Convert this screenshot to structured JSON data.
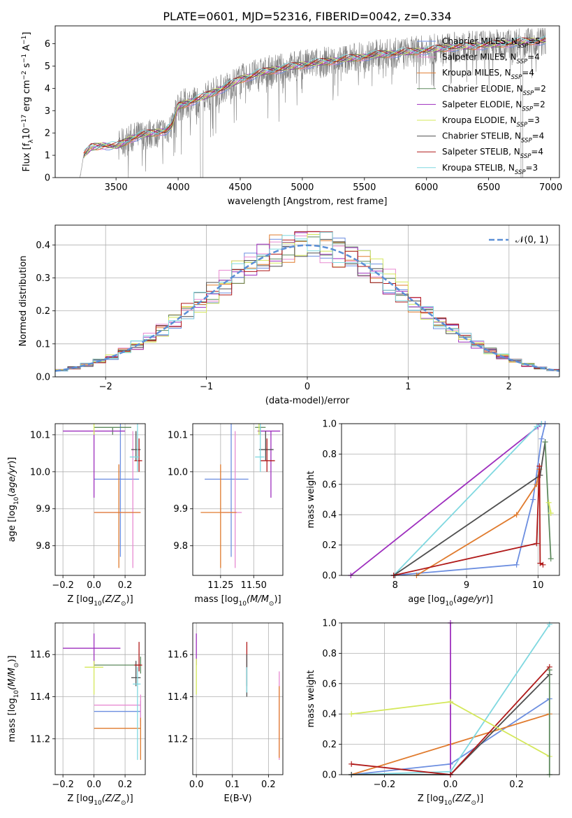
{
  "figure": {
    "title": "PLATE=0601, MJD=52316, FIBERID=0042, z=0.334"
  },
  "colors": {
    "axis": "#000000",
    "grid": "#b0b0b0",
    "spectrum": "#808080"
  },
  "chart_data": [
    {
      "id": "spectrum",
      "type": "line",
      "xlabel": "wavelength [Angstrom, rest frame]",
      "ylabel": "Flux [f",
      "xlim": [
        3010,
        7070
      ],
      "ylim": [
        0,
        6.8
      ],
      "xticks": [
        "3500",
        "4000",
        "4500",
        "5000",
        "5500",
        "6000",
        "6500",
        "7000"
      ],
      "yticks": [
        "0",
        "1",
        "2",
        "3",
        "4",
        "5",
        "6"
      ],
      "grid": false,
      "legend_position": "top-right",
      "data_start": 3210,
      "data_end": 6960,
      "observed_series": {
        "color": "#808080"
      },
      "series": [
        {
          "name": "Chabrier MILES, N",
          "sub": "SSP",
          "n": "=5",
          "color": "#6c8ee0"
        },
        {
          "name": "Salpeter MILES, N",
          "sub": "SSP",
          "n": "=4",
          "color": "#e88ad2"
        },
        {
          "name": "Kroupa MILES, N",
          "sub": "SSP",
          "n": "=4",
          "color": "#e07b2e"
        },
        {
          "name": "Chabrier ELODIE, N",
          "sub": "SSP",
          "n": "=2",
          "color": "#5e8a5e"
        },
        {
          "name": "Salpeter ELODIE, N",
          "sub": "SSP",
          "n": "=2",
          "color": "#9e2fbe"
        },
        {
          "name": "Kroupa ELODIE, N",
          "sub": "SSP",
          "n": "=3",
          "color": "#d4e85a"
        },
        {
          "name": "Chabrier STELIB, N",
          "sub": "SSP",
          "n": "=4",
          "color": "#4f4f4f"
        },
        {
          "name": "Salpeter STELIB, N",
          "sub": "SSP",
          "n": "=4",
          "color": "#b01a1a"
        },
        {
          "name": "Kroupa STELIB, N",
          "sub": "SSP",
          "n": "=3",
          "color": "#7fd8e0"
        }
      ],
      "continuum": {
        "x": [
          3210,
          3240,
          3300,
          3400,
          3500,
          3560,
          3620,
          3700,
          3800,
          3900,
          3950,
          4000,
          4100,
          4200,
          4300,
          4400,
          4500,
          4700,
          4900,
          5000,
          5200,
          5400,
          5600,
          5800,
          6000,
          6200,
          6400,
          6600,
          6800,
          6960
        ],
        "y": [
          0.0,
          1.0,
          1.35,
          1.45,
          1.4,
          1.55,
          1.75,
          1.9,
          2.0,
          2.1,
          2.3,
          3.2,
          3.4,
          3.6,
          3.85,
          4.1,
          4.4,
          4.75,
          4.95,
          5.05,
          5.2,
          5.35,
          5.5,
          5.6,
          5.7,
          5.85,
          5.9,
          6.0,
          6.1,
          6.15
        ]
      }
    },
    {
      "id": "residuals",
      "type": "histogram",
      "xlabel": "(data-model)/error",
      "ylabel": "Normed distribution",
      "xlim": [
        -2.5,
        2.5
      ],
      "ylim": [
        0,
        0.46
      ],
      "xticks": [
        "−2",
        "−1",
        "0",
        "1",
        "2"
      ],
      "yticks": [
        "0.0",
        "0.1",
        "0.2",
        "0.3",
        "0.4"
      ],
      "grid": true,
      "bins": 40,
      "legend_position": "top-right",
      "gaussian": {
        "label": "𝒩(0, 1)",
        "color": "#5b8fd6"
      }
    },
    {
      "id": "age-vs-Z",
      "type": "errorbar",
      "xlabel": "Z [log",
      "ylabel": "age  [log",
      "xlim": [
        -0.25,
        0.33
      ],
      "ylim": [
        9.72,
        10.13
      ],
      "xticks": [
        "−0.2",
        "0.0",
        "0.2"
      ],
      "yticks": [
        "9.8",
        "9.9",
        "10.0",
        "10.1"
      ],
      "grid": true,
      "points": [
        {
          "x": 0.17,
          "y": 9.98,
          "xerr": [
            0.17,
            0.12
          ],
          "yerr": [
            0.21,
            0.17
          ],
          "color": "#6c8ee0"
        },
        {
          "x": 0.25,
          "y": 9.89,
          "xerr": [
            0.25,
            0.05
          ],
          "yerr": [
            0.15,
            0.22
          ],
          "color": "#e88ad2"
        },
        {
          "x": 0.16,
          "y": 9.89,
          "xerr": [
            0.16,
            0.14
          ],
          "yerr": [
            0.15,
            0.13
          ],
          "color": "#e07b2e"
        },
        {
          "x": 0.12,
          "y": 10.12,
          "xerr": [
            0.12,
            0.12
          ],
          "yerr": [
            0.02,
            0.0
          ],
          "color": "#5e8a5e"
        },
        {
          "x": 0.0,
          "y": 10.11,
          "xerr": [
            0.2,
            0.2
          ],
          "yerr": [
            0.18,
            0.0
          ],
          "color": "#9e2fbe"
        },
        {
          "x": 0.0,
          "y": 10.15,
          "xerr": [
            0.06,
            0.12
          ],
          "yerr": [
            0.05,
            0.03
          ],
          "color": "#d4e85a"
        },
        {
          "x": 0.27,
          "y": 10.06,
          "xerr": [
            0.03,
            0.03
          ],
          "yerr": [
            0.03,
            0.05
          ],
          "color": "#4f4f4f"
        },
        {
          "x": 0.29,
          "y": 10.03,
          "xerr": [
            0.03,
            0.02
          ],
          "yerr": [
            0.03,
            0.06
          ],
          "color": "#b01a1a"
        },
        {
          "x": 0.28,
          "y": 10.04,
          "xerr": [
            0.05,
            0.01
          ],
          "yerr": [
            0.04,
            0.1
          ],
          "color": "#7fd8e0"
        }
      ]
    },
    {
      "id": "age-vs-mass",
      "type": "errorbar",
      "xlabel": "mass [log",
      "ylabel": "",
      "xlim": [
        11.04,
        11.72
      ],
      "ylim": [
        9.72,
        10.13
      ],
      "xticks": [
        "11.25",
        "11.50"
      ],
      "yticks": [
        "9.8",
        "9.9",
        "10.0",
        "10.1"
      ],
      "grid": true,
      "points": [
        {
          "x": 11.33,
          "y": 9.98,
          "xerr": [
            0.2,
            0.13
          ],
          "yerr": [
            0.21,
            0.17
          ],
          "color": "#6c8ee0"
        },
        {
          "x": 11.36,
          "y": 9.89,
          "xerr": [
            0.1,
            0.05
          ],
          "yerr": [
            0.15,
            0.22
          ],
          "color": "#e88ad2"
        },
        {
          "x": 11.25,
          "y": 9.89,
          "xerr": [
            0.15,
            0.12
          ],
          "yerr": [
            0.15,
            0.13
          ],
          "color": "#e07b2e"
        },
        {
          "x": 11.55,
          "y": 10.12,
          "xerr": [
            0.04,
            0.04
          ],
          "yerr": [
            0.02,
            0.0
          ],
          "color": "#5e8a5e"
        },
        {
          "x": 11.63,
          "y": 10.11,
          "xerr": [
            0.1,
            0.07
          ],
          "yerr": [
            0.18,
            0.0
          ],
          "color": "#9e2fbe"
        },
        {
          "x": 11.54,
          "y": 10.15,
          "xerr": [
            0.04,
            0.05
          ],
          "yerr": [
            0.05,
            0.03
          ],
          "color": "#d4e85a"
        },
        {
          "x": 11.59,
          "y": 10.06,
          "xerr": [
            0.05,
            0.06
          ],
          "yerr": [
            0.03,
            0.05
          ],
          "color": "#4f4f4f"
        },
        {
          "x": 11.6,
          "y": 10.03,
          "xerr": [
            0.05,
            0.06
          ],
          "yerr": [
            0.03,
            0.06
          ],
          "color": "#b01a1a"
        },
        {
          "x": 11.55,
          "y": 10.04,
          "xerr": [
            0.04,
            0.03
          ],
          "yerr": [
            0.04,
            0.1
          ],
          "color": "#7fd8e0"
        }
      ]
    },
    {
      "id": "sfh-age",
      "type": "line",
      "xlabel": "age  [log",
      "ylabel": "mass weight",
      "xlim": [
        7.25,
        10.3
      ],
      "ylim": [
        0,
        1
      ],
      "xticks": [
        "8",
        "9",
        "10"
      ],
      "yticks": [
        "0.0",
        "0.2",
        "0.4",
        "0.6",
        "0.8",
        "1.0"
      ],
      "grid": true,
      "series": [
        {
          "color": "#6c8ee0",
          "x": [
            7.98,
            9.7,
            9.93,
            10.05,
            10.1
          ],
          "y": [
            0.0,
            0.07,
            0.5,
            0.9,
            1.0
          ]
        },
        {
          "color": "#e07b2e",
          "x": [
            8.3,
            9.7,
            9.98,
            10.02
          ],
          "y": [
            0.0,
            0.4,
            0.6,
            0.7
          ]
        },
        {
          "color": "#9e2fbe",
          "x": [
            7.38,
            10.0,
            10.05
          ],
          "y": [
            0.0,
            0.98,
            1.0
          ]
        },
        {
          "color": "#7fd8e0",
          "x": [
            7.98,
            9.98,
            10.05
          ],
          "y": [
            0.0,
            0.98,
            1.0
          ]
        },
        {
          "color": "#4f4f4f",
          "x": [
            7.98,
            10.03,
            10.1
          ],
          "y": [
            0.0,
            0.66,
            0.88
          ]
        },
        {
          "color": "#5e8a5e",
          "x": [
            10.1,
            10.18
          ],
          "y": [
            0.88,
            0.11
          ]
        },
        {
          "color": "#d4e85a",
          "x": [
            10.15,
            10.18
          ],
          "y": [
            0.48,
            0.41
          ]
        },
        {
          "color": "#b01a1a",
          "x": [
            7.98,
            9.98,
            10.02,
            10.03,
            10.07
          ],
          "y": [
            0.0,
            0.21,
            0.72,
            0.08,
            0.07
          ]
        }
      ]
    },
    {
      "id": "mass-vs-Z",
      "type": "errorbar",
      "xlabel": "Z [log",
      "ylabel": "mass [log",
      "xlim": [
        -0.25,
        0.33
      ],
      "ylim": [
        11.03,
        11.75
      ],
      "xticks": [
        "−0.2",
        "0.0",
        "0.2"
      ],
      "yticks": [
        "11.2",
        "11.4",
        "11.6"
      ],
      "grid": true,
      "points": [
        {
          "x": 0.3,
          "y": 11.33,
          "xerr": [
            0.3,
            0.0
          ],
          "yerr": [
            0.05,
            0.05
          ],
          "color": "#6c8ee0"
        },
        {
          "x": 0.3,
          "y": 11.36,
          "xerr": [
            0.3,
            0.0
          ],
          "yerr": [
            0.1,
            0.05
          ],
          "color": "#e88ad2"
        },
        {
          "x": 0.3,
          "y": 11.25,
          "xerr": [
            0.3,
            0.0
          ],
          "yerr": [
            0.15,
            0.05
          ],
          "color": "#e07b2e"
        },
        {
          "x": 0.3,
          "y": 11.55,
          "xerr": [
            0.3,
            0.0
          ],
          "yerr": [
            0.04,
            0.04
          ],
          "color": "#5e8a5e"
        },
        {
          "x": 0.0,
          "y": 11.63,
          "xerr": [
            0.2,
            0.17
          ],
          "yerr": [
            0.09,
            0.07
          ],
          "color": "#9e2fbe"
        },
        {
          "x": 0.0,
          "y": 11.54,
          "xerr": [
            0.06,
            0.06
          ],
          "yerr": [
            0.13,
            0.03
          ],
          "color": "#d4e85a"
        },
        {
          "x": 0.27,
          "y": 11.49,
          "xerr": [
            0.03,
            0.03
          ],
          "yerr": [
            0.04,
            0.08
          ],
          "color": "#4f4f4f"
        },
        {
          "x": 0.29,
          "y": 11.55,
          "xerr": [
            0.03,
            0.02
          ],
          "yerr": [
            0.03,
            0.11
          ],
          "color": "#b01a1a"
        },
        {
          "x": 0.28,
          "y": 11.46,
          "xerr": [
            0.03,
            0.02
          ],
          "yerr": [
            0.36,
            0.08
          ],
          "color": "#7fd8e0"
        }
      ]
    },
    {
      "id": "mass-vs-EBV",
      "type": "errorbar",
      "xlabel": "E(B-V)",
      "ylabel": "",
      "xlim": [
        -0.01,
        0.24
      ],
      "ylim": [
        11.03,
        11.75
      ],
      "xticks": [
        "0.0",
        "0.1",
        "0.2"
      ],
      "yticks": [
        "11.2",
        "11.4",
        "11.6"
      ],
      "grid": true,
      "points": [
        {
          "x": 0.0,
          "y": 11.63,
          "xerr": [
            0,
            0
          ],
          "yerr": [
            0.08,
            0.07
          ],
          "color": "#9e2fbe"
        },
        {
          "x": 0.0,
          "y": 11.54,
          "xerr": [
            0,
            0
          ],
          "yerr": [
            0.13,
            0.04
          ],
          "color": "#d4e85a"
        },
        {
          "x": 0.14,
          "y": 11.55,
          "xerr": [
            0,
            0
          ],
          "yerr": [
            0.1,
            0.11
          ],
          "color": "#b01a1a"
        },
        {
          "x": 0.14,
          "y": 11.5,
          "xerr": [
            0,
            0
          ],
          "yerr": [
            0.1,
            0.1
          ],
          "color": "#4f4f4f"
        },
        {
          "x": 0.14,
          "y": 11.46,
          "xerr": [
            0,
            0
          ],
          "yerr": [
            0.04,
            0.08
          ],
          "color": "#7fd8e0"
        },
        {
          "x": 0.23,
          "y": 11.36,
          "xerr": [
            0,
            0
          ],
          "yerr": [
            0.26,
            0.16
          ],
          "color": "#e88ad2"
        },
        {
          "x": 0.23,
          "y": 11.25,
          "xerr": [
            0,
            0
          ],
          "yerr": [
            0.14,
            0.2
          ],
          "color": "#e07b2e"
        }
      ]
    },
    {
      "id": "sfh-Z",
      "type": "line",
      "xlabel": "Z [log",
      "ylabel": "mass weight",
      "xlim": [
        -0.33,
        0.33
      ],
      "ylim": [
        0,
        1
      ],
      "xticks": [
        "−0.2",
        "0.0",
        "0.2"
      ],
      "yticks": [
        "0.0",
        "0.2",
        "0.4",
        "0.6",
        "0.8",
        "1.0"
      ],
      "grid": true,
      "series": [
        {
          "color": "#6c8ee0",
          "x": [
            -0.3,
            0.0,
            0.3
          ],
          "y": [
            0.0,
            0.07,
            0.5
          ]
        },
        {
          "color": "#e07b2e",
          "x": [
            -0.3,
            0.0,
            0.3
          ],
          "y": [
            0.0,
            0.2,
            0.4
          ]
        },
        {
          "color": "#9e2fbe",
          "x": [
            0.0,
            0.0
          ],
          "y": [
            0.0,
            1.0
          ]
        },
        {
          "color": "#7fd8e0",
          "x": [
            -0.3,
            0.0,
            0.3
          ],
          "y": [
            0.0,
            0.02,
            0.99
          ]
        },
        {
          "color": "#4f4f4f",
          "x": [
            -0.3,
            0.0,
            0.3
          ],
          "y": [
            0.0,
            0.0,
            0.66
          ]
        },
        {
          "color": "#b01a1a",
          "x": [
            -0.3,
            0.0,
            0.3
          ],
          "y": [
            0.07,
            0.0,
            0.71
          ]
        },
        {
          "color": "#d4e85a",
          "x": [
            -0.3,
            0.0,
            0.3
          ],
          "y": [
            0.4,
            0.48,
            0.12
          ]
        },
        {
          "color": "#5e8a5e",
          "x": [
            0.3,
            0.3
          ],
          "y": [
            0.0,
            0.69
          ]
        }
      ]
    }
  ]
}
